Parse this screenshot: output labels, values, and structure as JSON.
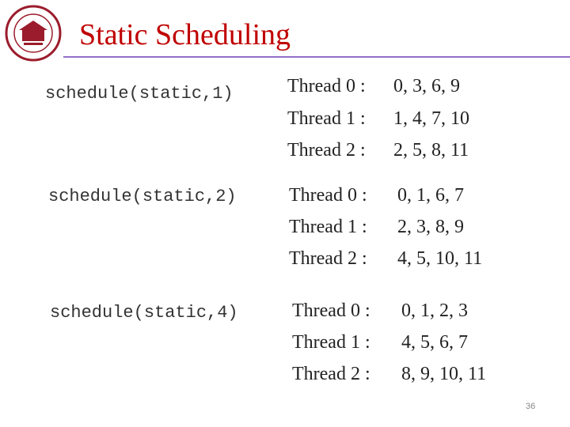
{
  "title": "Static Scheduling",
  "blocks": [
    {
      "schedule": "schedule(static,1)",
      "rows": [
        {
          "thread": "Thread 0 :",
          "iterations": "0, 3, 6, 9"
        },
        {
          "thread": "Thread 1 :",
          "iterations": "1, 4, 7, 10"
        },
        {
          "thread": "Thread 2 :",
          "iterations": "2, 5, 8, 11"
        }
      ]
    },
    {
      "schedule": "schedule(static,2)",
      "rows": [
        {
          "thread": "Thread 0 :",
          "iterations": "0, 1, 6, 7"
        },
        {
          "thread": "Thread 1 :",
          "iterations": "2, 3, 8, 9"
        },
        {
          "thread": "Thread 2 :",
          "iterations": "4, 5, 10, 11"
        }
      ]
    },
    {
      "schedule": "schedule(static,4)",
      "rows": [
        {
          "thread": "Thread 0 :",
          "iterations": "0, 1, 2, 3"
        },
        {
          "thread": "Thread 1 :",
          "iterations": "4, 5, 6, 7"
        },
        {
          "thread": "Thread 2 :",
          "iterations": "8, 9, 10, 11"
        }
      ]
    }
  ],
  "page_number": "36"
}
